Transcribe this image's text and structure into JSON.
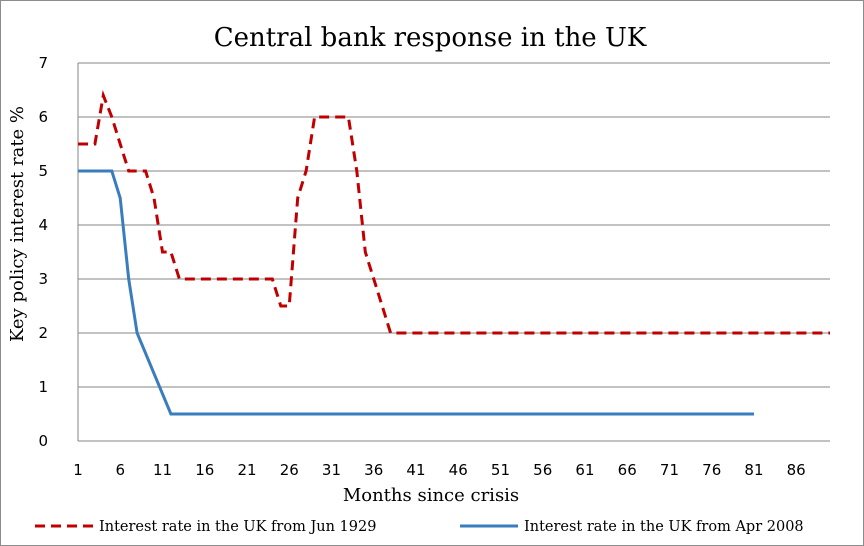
{
  "chart_data": {
    "type": "line",
    "title": "Central bank response in the UK",
    "xlabel": "Months since crisis",
    "ylabel": "Key policy interest rate %",
    "xlim": [
      1,
      90
    ],
    "ylim": [
      0,
      7
    ],
    "x_ticks": [
      1,
      6,
      11,
      16,
      21,
      26,
      31,
      36,
      41,
      46,
      51,
      56,
      61,
      66,
      71,
      76,
      81,
      86
    ],
    "y_ticks": [
      0,
      1,
      2,
      3,
      4,
      5,
      6,
      7
    ],
    "grid": "horizontal",
    "legend_position": "bottom",
    "series": [
      {
        "name": "Interest rate in the UK from Jun 1929",
        "color": "#C00000",
        "style": "dashed",
        "points": [
          [
            1,
            5.5
          ],
          [
            3,
            5.5
          ],
          [
            4,
            6.4
          ],
          [
            5,
            6.0
          ],
          [
            6,
            5.5
          ],
          [
            7,
            5.0
          ],
          [
            9,
            5.0
          ],
          [
            10,
            4.5
          ],
          [
            11,
            3.5
          ],
          [
            12,
            3.5
          ],
          [
            13,
            3.0
          ],
          [
            24,
            3.0
          ],
          [
            25,
            2.5
          ],
          [
            26,
            2.5
          ],
          [
            27,
            4.5
          ],
          [
            28,
            5.0
          ],
          [
            29,
            6.0
          ],
          [
            33,
            6.0
          ],
          [
            34,
            5.0
          ],
          [
            35,
            3.5
          ],
          [
            37,
            2.5
          ],
          [
            38,
            2.0
          ],
          [
            90,
            2.0
          ]
        ]
      },
      {
        "name": "Interest rate in the UK from Apr 2008",
        "color": "#3A7DBE",
        "style": "solid",
        "points": [
          [
            1,
            5.0
          ],
          [
            5,
            5.0
          ],
          [
            6,
            4.5
          ],
          [
            7,
            3.0
          ],
          [
            8,
            2.0
          ],
          [
            12,
            0.5
          ],
          [
            81,
            0.5
          ]
        ]
      }
    ]
  }
}
